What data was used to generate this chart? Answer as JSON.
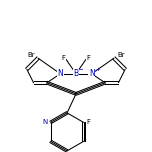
{
  "bg_color": "#ffffff",
  "line_color": "#000000",
  "N_color": "#0000bb",
  "B_color": "#0000bb",
  "figsize": [
    1.52,
    1.52
  ],
  "dpi": 100
}
